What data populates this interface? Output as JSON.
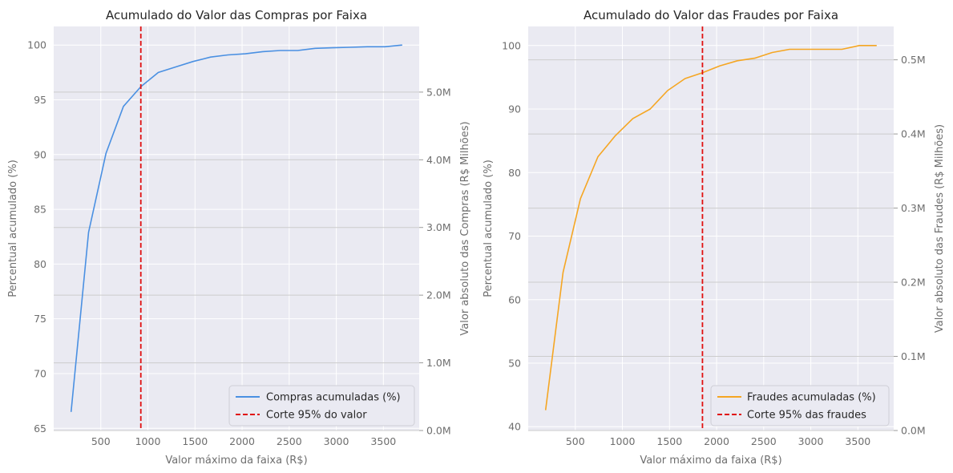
{
  "charts": [
    {
      "title": "Acumulado do Valor das Compras por Faixa",
      "xlabel": "Valor máximo da faixa (R$)",
      "ylabel": "Percentual acumulado (%)",
      "y2label": "Valor absoluto das Compras (R$ Milhões)",
      "xticks": [
        "500",
        "1000",
        "1500",
        "2000",
        "2500",
        "3000",
        "3500"
      ],
      "yticks": [
        "65",
        "70",
        "75",
        "80",
        "85",
        "90",
        "95",
        "100"
      ],
      "y2ticks": [
        "0.0M",
        "1.0M",
        "2.0M",
        "3.0M",
        "4.0M",
        "5.0M"
      ],
      "legend": [
        "Compras acumuladas (%)",
        "Corte 95% do valor"
      ]
    },
    {
      "title": "Acumulado do Valor das Fraudes por Faixa",
      "xlabel": "Valor máximo da faixa (R$)",
      "ylabel": "Percentual acumulado (%)",
      "y2label": "Valor absoluto das Fraudes (R$ Milhões)",
      "xticks": [
        "500",
        "1000",
        "1500",
        "2000",
        "2500",
        "3000",
        "3500"
      ],
      "yticks": [
        "40",
        "50",
        "60",
        "70",
        "80",
        "90",
        "100"
      ],
      "y2ticks": [
        "0.0M",
        "0.1M",
        "0.2M",
        "0.3M",
        "0.4M",
        "0.5M"
      ],
      "legend": [
        "Fraudes acumuladas (%)",
        "Corte 95% das fraudes"
      ]
    }
  ],
  "chart_data": [
    {
      "type": "line",
      "title": "Acumulado do Valor das Compras por Faixa",
      "xlabel": "Valor máximo da faixa (R$)",
      "ylabel": "Percentual acumulado (%)",
      "y2label": "Valor absoluto das Compras (R$ Milhões)",
      "xlim": [
        0,
        3880
      ],
      "ylim": [
        64.8,
        101.7
      ],
      "y2lim": [
        0,
        5.97
      ],
      "grid": true,
      "legend_position": "lower-right",
      "color": "#4a90e2",
      "cut_color": "#e01010",
      "series": [
        {
          "name": "Compras acumuladas (%)",
          "x": [
            185,
            370,
            555,
            740,
            925,
            1110,
            1295,
            1480,
            1665,
            1850,
            2035,
            2220,
            2405,
            2590,
            2775,
            2960,
            3145,
            3330,
            3515,
            3700
          ],
          "y": [
            66.5,
            82.9,
            90.1,
            94.4,
            96.2,
            97.5,
            98.0,
            98.5,
            98.9,
            99.1,
            99.2,
            99.4,
            99.5,
            99.5,
            99.7,
            99.75,
            99.8,
            99.85,
            99.85,
            100.0
          ]
        }
      ],
      "cut": {
        "name": "Corte 95% do valor",
        "x": 925
      }
    },
    {
      "type": "line",
      "title": "Acumulado do Valor das Fraudes por Faixa",
      "xlabel": "Valor máximo da faixa (R$)",
      "ylabel": "Percentual acumulado (%)",
      "y2label": "Valor absoluto das Fraudes (R$ Milhões)",
      "xlim": [
        0,
        3880
      ],
      "ylim": [
        39.4,
        103.0
      ],
      "y2lim": [
        0,
        0.545
      ],
      "grid": true,
      "legend_position": "lower-right",
      "color": "#f5a623",
      "cut_color": "#e01010",
      "series": [
        {
          "name": "Fraudes acumuladas (%)",
          "x": [
            185,
            370,
            555,
            740,
            925,
            1110,
            1295,
            1480,
            1665,
            1850,
            2035,
            2220,
            2405,
            2590,
            2775,
            2960,
            3145,
            3330,
            3515,
            3700
          ],
          "y": [
            42.6,
            64.3,
            75.9,
            82.5,
            85.8,
            88.5,
            90.0,
            92.9,
            94.8,
            95.7,
            96.8,
            97.6,
            98.0,
            98.9,
            99.4,
            99.4,
            99.4,
            99.4,
            100.0,
            100.0
          ]
        }
      ],
      "cut": {
        "name": "Corte 95% das fraudes",
        "x": 1850
      }
    }
  ]
}
